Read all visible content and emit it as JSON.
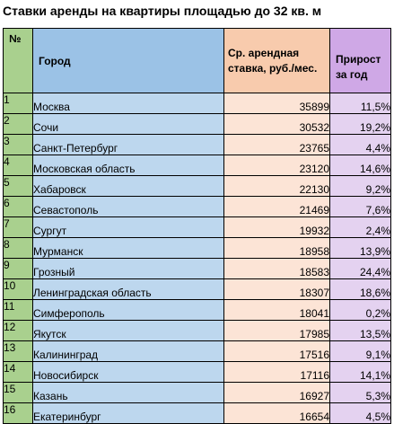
{
  "title": "Ставки аренды на квартиры площадью до 32 кв. м",
  "headers": {
    "num": "№",
    "city": "Город",
    "rent": "Ср. арендная ставка, руб./мес.",
    "growth": "Прирост за год"
  },
  "rows": [
    {
      "num": "1",
      "city": "Москва",
      "rent": "35899",
      "growth": "11,5%"
    },
    {
      "num": "2",
      "city": "Сочи",
      "rent": "30532",
      "growth": "19,2%"
    },
    {
      "num": "3",
      "city": "Санкт-Петербург",
      "rent": "23765",
      "growth": "4,4%"
    },
    {
      "num": "4",
      "city": "Московская область",
      "rent": "23120",
      "growth": "14,6%"
    },
    {
      "num": "5",
      "city": "Хабаровск",
      "rent": "22130",
      "growth": "9,2%"
    },
    {
      "num": "6",
      "city": "Севастополь",
      "rent": "21469",
      "growth": "7,6%"
    },
    {
      "num": "7",
      "city": "Сургут",
      "rent": "19932",
      "growth": "2,4%"
    },
    {
      "num": "8",
      "city": "Мурманск",
      "rent": "18958",
      "growth": "13,9%"
    },
    {
      "num": "9",
      "city": "Грозный",
      "rent": "18583",
      "growth": "24,4%"
    },
    {
      "num": "10",
      "city": "Ленинградская область",
      "rent": "18307",
      "growth": "18,6%"
    },
    {
      "num": "11",
      "city": "Симферополь",
      "rent": "18041",
      "growth": "0,2%"
    },
    {
      "num": "12",
      "city": "Якутск",
      "rent": "17985",
      "growth": "13,5%"
    },
    {
      "num": "13",
      "city": "Калининград",
      "rent": "17516",
      "growth": "9,1%"
    },
    {
      "num": "14",
      "city": "Новосибирск",
      "rent": "17116",
      "growth": "14,1%"
    },
    {
      "num": "15",
      "city": "Казань",
      "rent": "16927",
      "growth": "5,3%"
    },
    {
      "num": "16",
      "city": "Екатеринбург",
      "rent": "16654",
      "growth": "4,5%"
    }
  ]
}
